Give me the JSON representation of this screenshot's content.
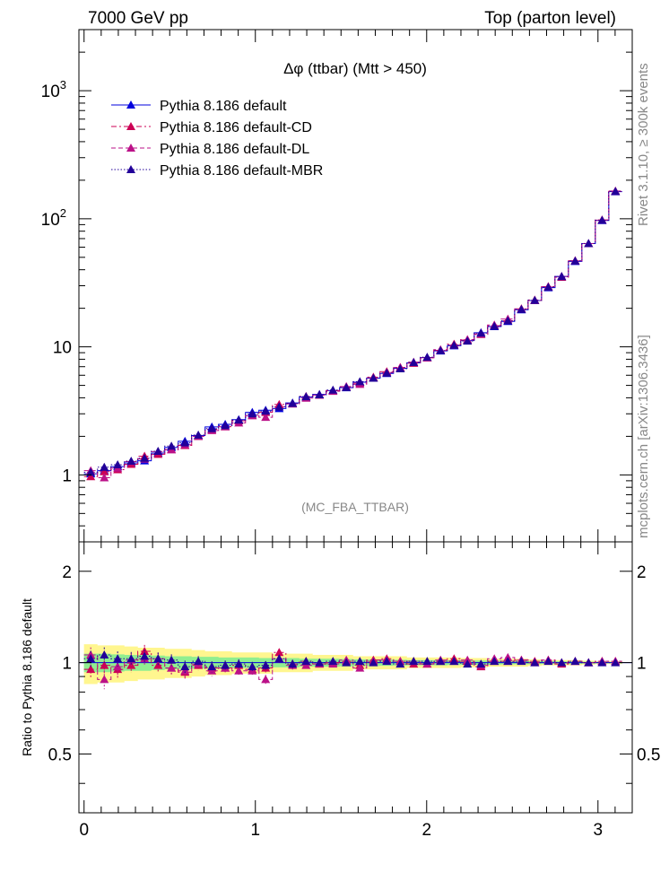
{
  "header": {
    "left": "7000 GeV pp",
    "right": "Top (parton level)"
  },
  "side_labels": {
    "rivet": "Rivet 3.1.10, ≥ 300k events",
    "mcplots": "mcplots.cern.ch [arXiv:1306.3436]"
  },
  "colors": {
    "default": "#0000dd",
    "cd": "#cc0055",
    "dl": "#bb1188",
    "mbr": "#220099",
    "band_yellow": "#fff68f",
    "band_green": "#90ee90"
  },
  "chart_data": [
    {
      "type": "line",
      "title": "Δφ (ttbar) (Mtt > 450)",
      "watermark": "(MC_FBA_TTBAR)",
      "xlabel": "",
      "ylabel": "",
      "xlim": [
        -0.03,
        3.2
      ],
      "ylim": [
        0.3,
        3000
      ],
      "yscale": "log",
      "ytick_labels": [
        "1",
        "10",
        "10^2",
        "10^3"
      ],
      "legend": [
        "Pythia 8.186 default",
        "Pythia 8.186 default-CD",
        "Pythia 8.186 default-DL",
        "Pythia 8.186 default-MBR"
      ],
      "legend_position": "top-left",
      "x": [
        0.039,
        0.118,
        0.196,
        0.275,
        0.353,
        0.432,
        0.51,
        0.589,
        0.667,
        0.746,
        0.824,
        0.903,
        0.982,
        1.06,
        1.139,
        1.217,
        1.296,
        1.374,
        1.453,
        1.531,
        1.61,
        1.689,
        1.767,
        1.846,
        1.924,
        2.003,
        2.081,
        2.16,
        2.238,
        2.317,
        2.395,
        2.474,
        2.553,
        2.631,
        2.71,
        2.788,
        2.867,
        2.945,
        3.024,
        3.102
      ],
      "series": [
        {
          "name": "Pythia 8.186 default",
          "values": [
            1.02,
            1.08,
            1.16,
            1.24,
            1.29,
            1.48,
            1.64,
            1.83,
            2.03,
            2.37,
            2.48,
            2.7,
            3.08,
            3.2,
            3.3,
            3.65,
            4.05,
            4.25,
            4.55,
            4.8,
            5.3,
            5.7,
            6.2,
            6.8,
            7.5,
            8.25,
            9.3,
            10.2,
            11.2,
            12.9,
            14.4,
            15.8,
            19.5,
            23.0,
            29.0,
            35.5,
            46.5,
            64.0,
            97.0,
            163.0
          ]
        },
        {
          "name": "Pythia 8.186 default-CD",
          "values": [
            0.97,
            1.06,
            1.1,
            1.21,
            1.4,
            1.45,
            1.58,
            1.7,
            2.0,
            2.27,
            2.38,
            2.65,
            2.92,
            3.08,
            3.55,
            3.6,
            4.1,
            4.2,
            4.55,
            4.85,
            5.2,
            5.8,
            6.4,
            6.9,
            7.45,
            8.2,
            9.4,
            10.5,
            11.3,
            12.5,
            14.6,
            16.0,
            19.8,
            23.2,
            29.5,
            35.0,
            47.0,
            64.0,
            98.0,
            164.0
          ]
        },
        {
          "name": "Pythia 8.186 default-DL",
          "values": [
            1.08,
            0.95,
            1.13,
            1.27,
            1.33,
            1.52,
            1.57,
            1.72,
            2.0,
            2.22,
            2.38,
            2.55,
            2.9,
            2.82,
            3.4,
            3.58,
            3.98,
            4.2,
            4.5,
            4.9,
            5.1,
            5.75,
            6.3,
            6.9,
            7.6,
            8.2,
            9.5,
            10.3,
            11.4,
            12.6,
            14.8,
            16.5,
            19.8,
            23.0,
            29.5,
            35.5,
            47.0,
            64.0,
            97.5,
            165.0
          ]
        },
        {
          "name": "Pythia 8.186 default-MBR",
          "values": [
            1.05,
            1.15,
            1.2,
            1.28,
            1.35,
            1.53,
            1.68,
            1.78,
            2.05,
            2.3,
            2.43,
            2.68,
            3.0,
            3.15,
            3.4,
            3.62,
            4.08,
            4.23,
            4.6,
            4.82,
            5.35,
            5.7,
            6.25,
            6.75,
            7.55,
            8.3,
            9.35,
            10.3,
            11.1,
            12.8,
            14.5,
            16.0,
            19.6,
            23.1,
            29.2,
            35.4,
            46.8,
            64.2,
            97.3,
            163.5
          ]
        }
      ]
    },
    {
      "type": "line",
      "title": "",
      "xlabel": "",
      "ylabel": "Ratio to Pythia 8.186 default",
      "xlim": [
        -0.03,
        3.2
      ],
      "ylim": [
        0.32,
        2.5
      ],
      "yscale": "log",
      "ytick_labels": [
        "0.5",
        "1",
        "2"
      ],
      "xtick_labels": [
        "0",
        "1",
        "2",
        "3"
      ],
      "x": [
        0.039,
        0.118,
        0.196,
        0.275,
        0.353,
        0.432,
        0.51,
        0.589,
        0.667,
        0.746,
        0.824,
        0.903,
        0.982,
        1.06,
        1.139,
        1.217,
        1.296,
        1.374,
        1.453,
        1.531,
        1.61,
        1.689,
        1.767,
        1.846,
        1.924,
        2.003,
        2.081,
        2.16,
        2.238,
        2.317,
        2.395,
        2.474,
        2.553,
        2.631,
        2.71,
        2.788,
        2.867,
        2.945,
        3.024,
        3.102
      ],
      "band_yellow_halfwidth": [
        0.15,
        0.14,
        0.14,
        0.13,
        0.12,
        0.12,
        0.11,
        0.11,
        0.1,
        0.09,
        0.09,
        0.08,
        0.08,
        0.08,
        0.07,
        0.07,
        0.07,
        0.06,
        0.06,
        0.06,
        0.05,
        0.05,
        0.05,
        0.05,
        0.04,
        0.04,
        0.04,
        0.04,
        0.035,
        0.035,
        0.03,
        0.03,
        0.03,
        0.025,
        0.02,
        0.02,
        0.02,
        0.015,
        0.01,
        0.01
      ],
      "band_green_halfwidth": [
        0.07,
        0.07,
        0.065,
        0.06,
        0.06,
        0.055,
        0.05,
        0.05,
        0.045,
        0.045,
        0.04,
        0.04,
        0.04,
        0.035,
        0.035,
        0.035,
        0.03,
        0.03,
        0.03,
        0.028,
        0.026,
        0.025,
        0.024,
        0.022,
        0.02,
        0.02,
        0.02,
        0.018,
        0.017,
        0.016,
        0.015,
        0.014,
        0.013,
        0.012,
        0.011,
        0.01,
        0.009,
        0.008,
        0.006,
        0.005
      ],
      "series": [
        {
          "name": "Pythia 8.186 default-CD",
          "values": [
            0.95,
            0.98,
            0.95,
            0.98,
            1.09,
            0.98,
            0.96,
            0.93,
            0.98,
            0.96,
            0.96,
            0.98,
            0.95,
            0.96,
            1.08,
            0.99,
            1.01,
            0.99,
            1.0,
            1.01,
            0.98,
            1.02,
            1.03,
            1.01,
            0.99,
            0.99,
            1.01,
            1.03,
            1.01,
            0.97,
            1.01,
            1.01,
            1.02,
            1.01,
            1.02,
            0.99,
            1.01,
            1.0,
            1.01,
            1.01
          ]
        },
        {
          "name": "Pythia 8.186 default-DL",
          "values": [
            1.06,
            0.88,
            0.97,
            1.02,
            1.03,
            1.03,
            0.96,
            0.94,
            0.99,
            0.94,
            0.96,
            0.94,
            0.94,
            0.88,
            1.03,
            0.98,
            0.98,
            0.99,
            0.99,
            1.02,
            0.96,
            1.01,
            1.02,
            1.01,
            1.01,
            0.99,
            1.02,
            1.01,
            1.02,
            0.98,
            1.03,
            1.04,
            1.02,
            1.0,
            1.02,
            1.0,
            1.01,
            1.0,
            1.01,
            1.01
          ]
        },
        {
          "name": "Pythia 8.186 default-MBR",
          "values": [
            1.03,
            1.06,
            1.03,
            1.03,
            1.05,
            1.03,
            1.02,
            0.97,
            1.01,
            0.97,
            0.98,
            0.99,
            0.97,
            0.98,
            1.03,
            0.99,
            1.01,
            1.0,
            1.01,
            1.0,
            1.01,
            1.0,
            1.01,
            0.99,
            1.01,
            1.01,
            1.01,
            1.01,
            0.99,
            0.99,
            1.01,
            1.01,
            1.01,
            1.0,
            1.01,
            1.0,
            1.01,
            1.0,
            1.0,
            1.0
          ]
        }
      ]
    }
  ]
}
